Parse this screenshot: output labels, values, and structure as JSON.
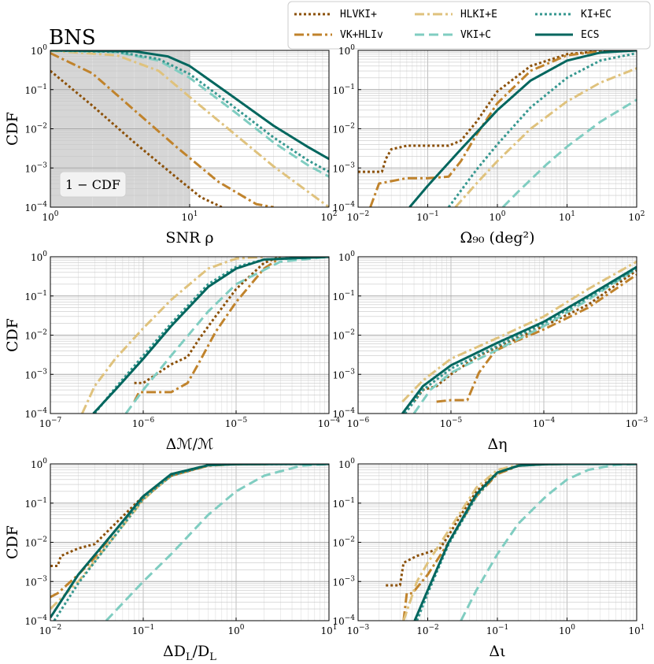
{
  "title": "BNS",
  "ylabel": "CDF",
  "legend": {
    "placement": "top-right",
    "entries": [
      {
        "key": "HLVKI+",
        "label": "HLVKI+",
        "color": "#8c5109",
        "style": "dotted"
      },
      {
        "key": "VK+HLIv",
        "label": "VK+HLIv",
        "color": "#c0832c",
        "style": "dashdot"
      },
      {
        "key": "HLKI+E",
        "label": "HLKI+E",
        "color": "#dfc27d",
        "style": "dashdot"
      },
      {
        "key": "VKI+C",
        "label": "VKI+C",
        "color": "#80cdc1",
        "style": "dashed"
      },
      {
        "key": "KI+EC",
        "label": "KI+EC",
        "color": "#35978f",
        "style": "dotted"
      },
      {
        "key": "ECS",
        "label": "ECS",
        "color": "#01665e",
        "style": "solid"
      }
    ]
  },
  "chart_data": [
    {
      "id": "snr",
      "type": "line",
      "xscale": "log",
      "yscale": "log",
      "xlabel": "SNR ρ",
      "ylabel": "CDF",
      "xlim": [
        1,
        100
      ],
      "ylim": [
        0.0001,
        1
      ],
      "xticks": [
        "10⁰",
        "10¹",
        "10²"
      ],
      "yticks": [
        "10⁻⁴",
        "10⁻³",
        "10⁻²",
        "10⁻¹",
        "10⁰"
      ],
      "annotation": "1 − CDF",
      "shaded_region_x": [
        1,
        10
      ],
      "series": [
        {
          "name": "HLVKI+",
          "x": [
            1,
            2,
            4,
            8,
            12,
            17
          ],
          "y": [
            0.3,
            0.039,
            0.0045,
            0.00058,
            0.00018,
            0.0001
          ]
        },
        {
          "name": "VK+HLIv",
          "x": [
            1,
            2,
            4,
            8,
            16,
            30,
            40
          ],
          "y": [
            0.85,
            0.26,
            0.03,
            0.0035,
            0.00045,
            0.00012,
            0.0001
          ]
        },
        {
          "name": "HLKI+E",
          "x": [
            1,
            3,
            6,
            10,
            20,
            40,
            100
          ],
          "y": [
            0.98,
            0.75,
            0.3,
            0.065,
            0.0085,
            0.0011,
            0.0001
          ]
        },
        {
          "name": "VKI+C",
          "x": [
            1,
            3,
            6,
            10,
            20,
            40,
            70,
            100
          ],
          "y": [
            1,
            0.9,
            0.55,
            0.2,
            0.031,
            0.0045,
            0.0012,
            0.0006
          ]
        },
        {
          "name": "KI+EC",
          "x": [
            1,
            3,
            6,
            10,
            20,
            40,
            70,
            100
          ],
          "y": [
            1,
            0.92,
            0.6,
            0.25,
            0.04,
            0.006,
            0.0016,
            0.0008
          ]
        },
        {
          "name": "ECS",
          "x": [
            1,
            4,
            7,
            10,
            20,
            40,
            70,
            100
          ],
          "y": [
            1,
            0.95,
            0.7,
            0.4,
            0.07,
            0.012,
            0.0035,
            0.0017
          ]
        }
      ]
    },
    {
      "id": "omega",
      "type": "line",
      "xscale": "log",
      "yscale": "log",
      "xlabel": "Ω₉₀ (deg²)",
      "xlim": [
        0.01,
        100
      ],
      "ylim": [
        0.0001,
        1
      ],
      "xticks": [
        "10⁻²",
        "10⁻¹",
        "10⁰",
        "10¹",
        "10²"
      ],
      "yticks": [
        "10⁻⁴",
        "10⁻³",
        "10⁻²",
        "10⁻¹",
        "10⁰"
      ],
      "series": [
        {
          "name": "HLVKI+",
          "x": [
            0.01,
            0.022,
            0.025,
            0.03,
            0.05,
            0.07,
            0.1,
            0.2,
            0.3,
            0.5,
            1,
            3,
            10,
            30,
            100
          ],
          "y": [
            0.0008,
            0.0008,
            0.0017,
            0.003,
            0.0037,
            0.0037,
            0.0037,
            0.0037,
            0.005,
            0.015,
            0.09,
            0.4,
            0.8,
            0.96,
            1
          ]
        },
        {
          "name": "VK+HLIv",
          "x": [
            0.015,
            0.02,
            0.05,
            0.1,
            0.2,
            0.3,
            0.5,
            1,
            3,
            10,
            30,
            100
          ],
          "y": [
            0.0001,
            0.0004,
            0.00055,
            0.00055,
            0.0006,
            0.0015,
            0.007,
            0.045,
            0.3,
            0.75,
            0.95,
            1
          ]
        },
        {
          "name": "HLKI+E",
          "x": [
            0.25,
            0.5,
            1,
            3,
            10,
            30,
            100
          ],
          "y": [
            0.0001,
            0.0004,
            0.0015,
            0.01,
            0.05,
            0.15,
            0.35
          ]
        },
        {
          "name": "VKI+C",
          "x": [
            1.2,
            2,
            5,
            10,
            30,
            100
          ],
          "y": [
            0.0001,
            0.00025,
            0.0012,
            0.0035,
            0.015,
            0.055
          ]
        },
        {
          "name": "KI+EC",
          "x": [
            0.2,
            0.5,
            1,
            3,
            10,
            30,
            100
          ],
          "y": [
            0.0001,
            0.0009,
            0.004,
            0.035,
            0.2,
            0.55,
            0.85
          ]
        },
        {
          "name": "ECS",
          "x": [
            0.055,
            0.1,
            0.3,
            1,
            3,
            10,
            30,
            100
          ],
          "y": [
            0.0001,
            0.00035,
            0.003,
            0.03,
            0.17,
            0.55,
            0.88,
            1
          ]
        }
      ]
    },
    {
      "id": "chirp",
      "type": "line",
      "xscale": "log",
      "yscale": "log",
      "xlabel": "Δℳ/ℳ",
      "ylabel": "CDF",
      "xlim": [
        1e-07,
        0.0001
      ],
      "ylim": [
        0.0001,
        1
      ],
      "xticks": [
        "10⁻⁷",
        "10⁻⁶",
        "10⁻⁵",
        "10⁻⁴"
      ],
      "yticks": [
        "10⁻⁴",
        "10⁻³",
        "10⁻²",
        "10⁻¹",
        "10⁰"
      ],
      "series": [
        {
          "name": "HLVKI+",
          "x": [
            8e-07,
            1e-06,
            2e-06,
            3e-06,
            4e-06,
            6e-06,
            1e-05,
            2e-05,
            3e-05
          ],
          "y": [
            0.0006,
            0.0006,
            0.0018,
            0.0028,
            0.008,
            0.03,
            0.15,
            0.7,
            1
          ]
        },
        {
          "name": "VK+HLIv",
          "x": [
            8e-07,
            9e-07,
            1.2e-06,
            2e-06,
            3e-06,
            4e-06,
            6e-06,
            1e-05,
            2e-05,
            3e-05
          ],
          "y": [
            0.0002,
            0.00035,
            0.00035,
            0.00035,
            0.0006,
            0.002,
            0.012,
            0.07,
            0.5,
            0.95
          ]
        },
        {
          "name": "HLKI+E",
          "x": [
            2.2e-07,
            3e-07,
            5e-07,
            1e-06,
            2e-06,
            5e-06,
            1e-05,
            2e-05
          ],
          "y": [
            0.0001,
            0.0005,
            0.0025,
            0.015,
            0.08,
            0.5,
            0.9,
            1
          ]
        },
        {
          "name": "VKI+C",
          "x": [
            6.5e-07,
            1e-06,
            2e-06,
            5e-06,
            1e-05,
            3e-05,
            0.0001
          ],
          "y": [
            0.0001,
            0.0004,
            0.003,
            0.04,
            0.2,
            0.75,
            1
          ]
        },
        {
          "name": "KI+EC",
          "x": [
            3e-07,
            5e-07,
            1e-06,
            2e-06,
            5e-06,
            1e-05,
            2e-05,
            0.0001
          ],
          "y": [
            0.0001,
            0.00045,
            0.003,
            0.02,
            0.2,
            0.55,
            0.85,
            1
          ]
        },
        {
          "name": "ECS",
          "x": [
            2.9e-07,
            5e-07,
            1e-06,
            2e-06,
            5e-06,
            1e-05,
            2e-05,
            0.0001
          ],
          "y": [
            0.0001,
            0.0004,
            0.0025,
            0.017,
            0.17,
            0.5,
            0.85,
            1
          ]
        }
      ]
    },
    {
      "id": "eta",
      "type": "line",
      "xscale": "log",
      "yscale": "log",
      "xlabel": "Δη",
      "xlim": [
        1e-06,
        0.001
      ],
      "ylim": [
        0.0001,
        1
      ],
      "xticks": [
        "10⁻⁶",
        "10⁻⁵",
        "10⁻⁴",
        "10⁻³"
      ],
      "yticks": [
        "10⁻⁴",
        "10⁻³",
        "10⁻²",
        "10⁻¹",
        "10⁰"
      ],
      "series": [
        {
          "name": "HLVKI+",
          "x": [
            4e-06,
            5e-06,
            7e-06,
            1e-05,
            2e-05,
            5e-05,
            0.0001,
            0.0003,
            0.001
          ],
          "y": [
            0.0002,
            0.0004,
            0.0005,
            0.001,
            0.003,
            0.008,
            0.017,
            0.06,
            0.45
          ]
        },
        {
          "name": "VK+HLIv",
          "x": [
            7e-06,
            1e-05,
            1.5e-05,
            2e-05,
            3e-05,
            5e-05,
            0.0001,
            0.0003,
            0.001
          ],
          "y": [
            0.0002,
            0.00022,
            0.00022,
            0.0011,
            0.004,
            0.007,
            0.014,
            0.05,
            0.35
          ]
        },
        {
          "name": "HLKI+E",
          "x": [
            3e-06,
            5e-06,
            1e-05,
            3e-05,
            0.0001,
            0.0003,
            0.001
          ],
          "y": [
            0.0002,
            0.0007,
            0.0025,
            0.008,
            0.03,
            0.15,
            0.75
          ]
        },
        {
          "name": "VKI+C",
          "x": [
            4e-06,
            6e-06,
            1e-05,
            3e-05,
            0.0001,
            0.0003,
            0.001
          ],
          "y": [
            0.0001,
            0.0004,
            0.0011,
            0.004,
            0.017,
            0.08,
            0.5
          ]
        },
        {
          "name": "KI+EC",
          "x": [
            3.2e-06,
            5e-06,
            1e-05,
            3e-05,
            0.0001,
            0.0003,
            0.001
          ],
          "y": [
            0.0001,
            0.0004,
            0.0014,
            0.005,
            0.02,
            0.09,
            0.5
          ]
        },
        {
          "name": "ECS",
          "x": [
            3e-06,
            5e-06,
            1e-05,
            3e-05,
            0.0001,
            0.0003,
            0.001
          ],
          "y": [
            0.0001,
            0.0005,
            0.0017,
            0.006,
            0.022,
            0.1,
            0.55
          ]
        }
      ]
    },
    {
      "id": "dl",
      "type": "line",
      "xscale": "log",
      "yscale": "log",
      "xlabel": "ΔD_L/D_L",
      "ylabel": "CDF",
      "xlim": [
        0.01,
        10
      ],
      "ylim": [
        0.0001,
        1
      ],
      "xticks": [
        "10⁻²",
        "10⁻¹",
        "10⁰",
        "10¹"
      ],
      "yticks": [
        "10⁻⁴",
        "10⁻³",
        "10⁻²",
        "10⁻¹",
        "10⁰"
      ],
      "series": [
        {
          "name": "HLVKI+",
          "x": [
            0.01,
            0.012,
            0.013,
            0.02,
            0.03,
            0.05,
            0.1,
            0.2,
            0.5,
            1,
            3,
            10
          ],
          "y": [
            0.0025,
            0.0025,
            0.0045,
            0.007,
            0.009,
            0.03,
            0.15,
            0.5,
            0.92,
            0.99,
            1,
            1
          ]
        },
        {
          "name": "VK+HLIv",
          "x": [
            0.01,
            0.012,
            0.02,
            0.03,
            0.05,
            0.1,
            0.2,
            0.5,
            1,
            3,
            10
          ],
          "y": [
            0.0004,
            0.0005,
            0.0015,
            0.004,
            0.02,
            0.13,
            0.5,
            0.9,
            0.99,
            1,
            1
          ]
        },
        {
          "name": "HLKI+E",
          "x": [
            0.01,
            0.02,
            0.05,
            0.1,
            0.2,
            0.5,
            1,
            3,
            10
          ],
          "y": [
            0.0002,
            0.001,
            0.015,
            0.12,
            0.55,
            0.93,
            0.99,
            1,
            1
          ]
        },
        {
          "name": "VKI+C",
          "x": [
            0.04,
            0.1,
            0.2,
            0.5,
            1,
            2,
            5,
            10
          ],
          "y": [
            0.0001,
            0.001,
            0.005,
            0.05,
            0.2,
            0.5,
            0.9,
            1
          ]
        },
        {
          "name": "KI+EC",
          "x": [
            0.011,
            0.02,
            0.05,
            0.1,
            0.2,
            0.5,
            1,
            10
          ],
          "y": [
            0.0001,
            0.0009,
            0.015,
            0.13,
            0.5,
            0.92,
            0.99,
            1
          ]
        },
        {
          "name": "ECS",
          "x": [
            0.01,
            0.02,
            0.05,
            0.1,
            0.2,
            0.5,
            1,
            10
          ],
          "y": [
            0.00012,
            0.0015,
            0.02,
            0.15,
            0.55,
            0.93,
            0.99,
            1
          ]
        }
      ]
    },
    {
      "id": "iota",
      "type": "line",
      "xscale": "log",
      "yscale": "log",
      "xlabel": "Δι",
      "xlim": [
        0.001,
        10
      ],
      "ylim": [
        0.0001,
        1
      ],
      "xticks": [
        "10⁻³",
        "10⁻²",
        "10⁻¹",
        "10⁰",
        "10¹"
      ],
      "yticks": [
        "10⁻⁴",
        "10⁻³",
        "10⁻²",
        "10⁻¹",
        "10⁰"
      ],
      "series": [
        {
          "name": "HLVKI+",
          "x": [
            0.0025,
            0.004,
            0.0045,
            0.007,
            0.01,
            0.015,
            0.02,
            0.03,
            0.05,
            0.1,
            0.2,
            0.5,
            1,
            10
          ],
          "y": [
            0.0008,
            0.0008,
            0.003,
            0.0045,
            0.0055,
            0.007,
            0.015,
            0.05,
            0.2,
            0.6,
            0.9,
            0.99,
            1,
            1
          ]
        },
        {
          "name": "VK+HLIv",
          "x": [
            0.0045,
            0.005,
            0.006,
            0.01,
            0.02,
            0.05,
            0.1,
            0.2,
            0.5,
            1,
            10
          ],
          "y": [
            0.0001,
            0.0005,
            0.0005,
            0.0015,
            0.01,
            0.15,
            0.55,
            0.9,
            0.99,
            1,
            1
          ]
        },
        {
          "name": "HLKI+E",
          "x": [
            0.0045,
            0.007,
            0.01,
            0.02,
            0.05,
            0.1,
            0.2,
            0.5,
            1,
            10
          ],
          "y": [
            0.0001,
            0.001,
            0.003,
            0.02,
            0.25,
            0.7,
            0.95,
            1,
            1,
            1
          ]
        },
        {
          "name": "VKI+C",
          "x": [
            0.03,
            0.05,
            0.1,
            0.2,
            0.5,
            1,
            2,
            5,
            10
          ],
          "y": [
            0.0001,
            0.0006,
            0.005,
            0.03,
            0.15,
            0.4,
            0.7,
            0.95,
            1
          ]
        },
        {
          "name": "KI+EC",
          "x": [
            0.007,
            0.01,
            0.02,
            0.05,
            0.1,
            0.2,
            0.5,
            1,
            10
          ],
          "y": [
            0.0001,
            0.0005,
            0.009,
            0.15,
            0.6,
            0.9,
            0.99,
            1,
            1
          ]
        },
        {
          "name": "ECS",
          "x": [
            0.0065,
            0.01,
            0.02,
            0.05,
            0.1,
            0.2,
            0.5,
            1,
            10
          ],
          "y": [
            0.0001,
            0.0006,
            0.01,
            0.17,
            0.6,
            0.9,
            0.99,
            1,
            1
          ]
        }
      ]
    }
  ]
}
